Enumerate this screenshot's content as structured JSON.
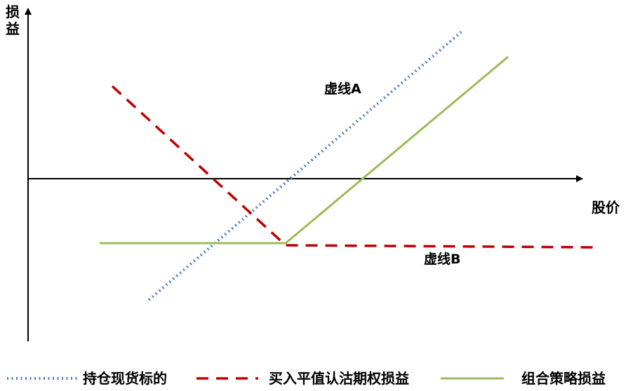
{
  "axes": {
    "y_label": "损益",
    "x_label": "股价"
  },
  "annotations": {
    "line_a": "虚线A",
    "line_b": "虚线B"
  },
  "legend": {
    "items": [
      {
        "label": "持仓现货标的",
        "style": "dotted",
        "color": "#4f81bd"
      },
      {
        "label": "买入平值认沽期权损益",
        "style": "dashed",
        "color": "#c00000"
      },
      {
        "label": "组合策略损益",
        "style": "solid",
        "color": "#9bbb59"
      }
    ]
  },
  "colors": {
    "axis": "#000000",
    "spot": "#4f81bd",
    "put": "#c00000",
    "combo": "#9bbb59"
  }
}
